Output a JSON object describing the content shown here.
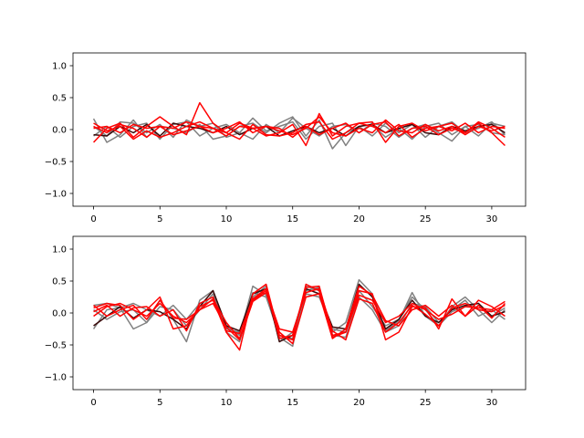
{
  "colors": {
    "background": "#ffffff",
    "axes_frame": "#000000",
    "gray_series": "#808080",
    "dark_series": "#3a0a0a",
    "red_series": "#ff0000"
  },
  "chart_data": [
    {
      "type": "line",
      "title": "",
      "xlabel": "",
      "ylabel": "",
      "xlim": [
        -1.55,
        32.55
      ],
      "ylim": [
        -1.2,
        1.2
      ],
      "xticks": [
        0,
        5,
        10,
        15,
        20,
        25,
        30
      ],
      "yticks": [
        -1.0,
        -0.5,
        0.0,
        0.5,
        1.0
      ],
      "xtick_labels": [
        "0",
        "5",
        "10",
        "15",
        "20",
        "25",
        "30"
      ],
      "ytick_labels": [
        "−1.0",
        "−0.5",
        "0.0",
        "0.5",
        "1.0"
      ],
      "grid": false,
      "legend": "none",
      "x": [
        0,
        1,
        2,
        3,
        4,
        5,
        6,
        7,
        8,
        9,
        10,
        11,
        12,
        13,
        14,
        15,
        16,
        17,
        18,
        19,
        20,
        21,
        22,
        23,
        24,
        25,
        26,
        27,
        28,
        29,
        30,
        31
      ],
      "series": [
        {
          "color": "#808080",
          "values": [
            0.17,
            -0.2,
            -0.08,
            0.15,
            -0.12,
            0.05,
            0.02,
            -0.05,
            0.08,
            -0.15,
            -0.1,
            0.05,
            0.1,
            -0.05,
            0.1,
            0.2,
            -0.1,
            0.15,
            -0.3,
            -0.05,
            0.05,
            0.08,
            -0.12,
            0.02,
            -0.15,
            0.05,
            0.1,
            -0.08,
            0.05,
            -0.1,
            0.1,
            0.05
          ]
        },
        {
          "color": "#808080",
          "values": [
            0.05,
            -0.1,
            0.12,
            0.1,
            -0.05,
            0.08,
            -0.12,
            0.15,
            0.05,
            0.1,
            -0.12,
            -0.05,
            0.18,
            -0.02,
            0.05,
            0.12,
            -0.15,
            0.05,
            0.1,
            -0.25,
            0.05,
            -0.1,
            0.1,
            -0.05,
            0.08,
            -0.12,
            0.05,
            0.12,
            -0.05,
            0.02,
            0.12,
            -0.08
          ]
        },
        {
          "color": "#808080",
          "values": [
            -0.1,
            0.05,
            -0.12,
            0.05,
            0.1,
            -0.15,
            0.08,
            0.12,
            -0.1,
            0.02,
            0.08,
            -0.05,
            -0.15,
            0.08,
            -0.05,
            0.18,
            0.02,
            -0.1,
            0.05,
            0.08,
            -0.05,
            0.1,
            0.05,
            -0.12,
            0.02,
            0.08,
            -0.05,
            -0.18,
            0.05,
            0.08,
            -0.05,
            -0.08
          ]
        },
        {
          "color": "#3a0a0a",
          "values": [
            -0.08,
            -0.1,
            0.05,
            -0.05,
            0.08,
            -0.1,
            0.1,
            0.05,
            0.02,
            -0.05,
            0.05,
            -0.08,
            0.02,
            0.05,
            -0.1,
            -0.02,
            0.05,
            -0.05,
            0.02,
            -0.1,
            0.05,
            0.08,
            -0.05,
            0.02,
            0.08,
            -0.05,
            -0.08,
            0.05,
            -0.02,
            0.05,
            0.08,
            -0.05
          ]
        },
        {
          "color": "#ff0000",
          "values": [
            -0.2,
            0.02,
            0.1,
            -0.12,
            0.05,
            0.2,
            0.05,
            -0.08,
            0.42,
            0.1,
            -0.05,
            0.1,
            0.02,
            -0.1,
            -0.05,
            0.08,
            -0.25,
            0.25,
            -0.1,
            0.05,
            0.1,
            0.12,
            -0.2,
            0.05,
            0.1,
            -0.02,
            0.05,
            0.1,
            -0.05,
            0.1,
            -0.05,
            -0.25
          ]
        },
        {
          "color": "#ff0000",
          "values": [
            0.05,
            -0.05,
            0.08,
            0.02,
            -0.12,
            0.05,
            0.02,
            0.12,
            0.05,
            -0.05,
            0.02,
            0.12,
            -0.05,
            0.05,
            0.02,
            -0.12,
            0.05,
            -0.08,
            0.02,
            0.1,
            -0.05,
            0.08,
            0.12,
            -0.1,
            0.02,
            0.05,
            -0.08,
            0.02,
            -0.05,
            0.12,
            0.02,
            -0.12
          ]
        },
        {
          "color": "#ff0000",
          "values": [
            0.1,
            -0.02,
            0.05,
            -0.15,
            -0.02,
            -0.12,
            -0.05,
            0.05,
            0.12,
            0.02,
            -0.05,
            -0.15,
            0.08,
            -0.08,
            -0.1,
            -0.05,
            0.08,
            0.12,
            -0.15,
            -0.05,
            0.1,
            0.05,
            -0.05,
            0.08,
            -0.12,
            0.02,
            0.05,
            -0.02,
            0.1,
            -0.05,
            0.05,
            0.02
          ]
        },
        {
          "color": "#ff0000",
          "values": [
            0.02,
            0.05,
            -0.05,
            0.08,
            0.02,
            0.05,
            -0.08,
            -0.02,
            0.05,
            0.02,
            -0.1,
            0.05,
            0.02,
            0.05,
            -0.02,
            -0.08,
            0.02,
            0.2,
            -0.05,
            -0.1,
            0.02,
            -0.05,
            0.15,
            -0.02,
            -0.05,
            0.08,
            -0.02,
            0.05,
            -0.08,
            0.05,
            -0.02,
            0.05
          ]
        }
      ]
    },
    {
      "type": "line",
      "title": "",
      "xlabel": "",
      "ylabel": "",
      "xlim": [
        -1.55,
        32.55
      ],
      "ylim": [
        -1.2,
        1.2
      ],
      "xticks": [
        0,
        5,
        10,
        15,
        20,
        25,
        30
      ],
      "yticks": [
        -1.0,
        -0.5,
        0.0,
        0.5,
        1.0
      ],
      "xtick_labels": [
        "0",
        "5",
        "10",
        "15",
        "20",
        "25",
        "30"
      ],
      "ytick_labels": [
        "−1.0",
        "−0.5",
        "0.0",
        "0.5",
        "1.0"
      ],
      "grid": false,
      "legend": "none",
      "x": [
        0,
        1,
        2,
        3,
        4,
        5,
        6,
        7,
        8,
        9,
        10,
        11,
        12,
        13,
        14,
        15,
        16,
        17,
        18,
        19,
        20,
        21,
        22,
        23,
        24,
        25,
        26,
        27,
        28,
        29,
        30,
        31
      ],
      "series": [
        {
          "color": "#808080",
          "values": [
            0.12,
            0.15,
            0.08,
            -0.25,
            -0.15,
            0.2,
            -0.1,
            -0.45,
            0.2,
            0.35,
            -0.2,
            -0.35,
            0.42,
            0.28,
            -0.38,
            -0.52,
            0.42,
            0.35,
            -0.3,
            -0.15,
            0.52,
            0.3,
            -0.28,
            -0.12,
            0.32,
            -0.05,
            -0.2,
            0.1,
            0.25,
            0.05,
            -0.15,
            0.05
          ]
        },
        {
          "color": "#808080",
          "values": [
            -0.25,
            0.05,
            0.08,
            0.15,
            0.05,
            -0.05,
            0.12,
            -0.1,
            0.15,
            0.25,
            -0.3,
            -0.45,
            0.25,
            0.42,
            -0.45,
            -0.3,
            0.35,
            0.4,
            -0.35,
            -0.38,
            0.25,
            0.05,
            -0.3,
            -0.2,
            0.15,
            0.1,
            -0.15,
            0.05,
            0.2,
            -0.05,
            0.05,
            -0.1
          ]
        },
        {
          "color": "#808080",
          "values": [
            0.05,
            -0.1,
            0.02,
            0.05,
            -0.15,
            0.1,
            0.05,
            -0.2,
            0.05,
            0.3,
            -0.25,
            -0.3,
            0.32,
            0.25,
            -0.35,
            -0.4,
            0.3,
            0.25,
            -0.25,
            -0.3,
            0.35,
            0.1,
            -0.2,
            -0.1,
            0.25,
            0.05,
            -0.2,
            0.02,
            0.1,
            0.15,
            -0.05,
            0.08
          ]
        },
        {
          "color": "#3a0a0a",
          "values": [
            -0.2,
            -0.05,
            0.1,
            -0.08,
            0.05,
            0.02,
            -0.1,
            -0.25,
            0.1,
            0.35,
            -0.2,
            -0.28,
            0.3,
            0.38,
            -0.45,
            -0.35,
            0.38,
            0.3,
            -0.22,
            -0.25,
            0.45,
            0.25,
            -0.25,
            -0.1,
            0.2,
            -0.05,
            -0.15,
            0.05,
            0.12,
            0.15,
            -0.05,
            0.02
          ]
        },
        {
          "color": "#ff0000",
          "values": [
            0.08,
            0.15,
            0.12,
            -0.1,
            0.05,
            0.25,
            -0.25,
            -0.2,
            0.1,
            0.2,
            -0.3,
            -0.58,
            0.3,
            0.45,
            -0.35,
            -0.42,
            0.45,
            0.35,
            -0.38,
            -0.3,
            0.35,
            0.3,
            -0.42,
            -0.3,
            0.1,
            0.08,
            -0.25,
            0.22,
            -0.05,
            0.12,
            -0.08,
            0.15
          ]
        },
        {
          "color": "#ff0000",
          "values": [
            -0.05,
            0.1,
            0.15,
            0.05,
            -0.05,
            0.15,
            -0.05,
            -0.15,
            0.05,
            0.22,
            -0.15,
            -0.4,
            0.2,
            0.35,
            -0.25,
            -0.3,
            0.32,
            0.38,
            -0.28,
            -0.42,
            0.22,
            0.15,
            -0.3,
            -0.15,
            0.12,
            -0.02,
            -0.2,
            0.08,
            0.15,
            0.05,
            0.02,
            0.12
          ]
        },
        {
          "color": "#ff0000",
          "values": [
            0.02,
            0.12,
            -0.05,
            0.08,
            0.1,
            -0.05,
            0.05,
            -0.28,
            0.15,
            0.25,
            -0.28,
            -0.32,
            0.22,
            0.38,
            -0.4,
            -0.35,
            0.4,
            0.42,
            -0.35,
            -0.3,
            0.28,
            0.2,
            -0.15,
            -0.05,
            0.15,
            0.05,
            -0.1,
            -0.02,
            0.1,
            0.08,
            0.05,
            0.18
          ]
        },
        {
          "color": "#ff0000",
          "values": [
            0.12,
            -0.05,
            0.05,
            0.12,
            -0.1,
            0.2,
            -0.08,
            -0.1,
            0.05,
            0.15,
            -0.22,
            -0.42,
            0.18,
            0.32,
            -0.3,
            -0.48,
            0.25,
            0.3,
            -0.4,
            -0.25,
            0.42,
            0.28,
            -0.12,
            -0.2,
            0.05,
            0.12,
            -0.05,
            0.12,
            -0.05,
            0.2,
            0.1,
            -0.05
          ]
        }
      ]
    }
  ]
}
